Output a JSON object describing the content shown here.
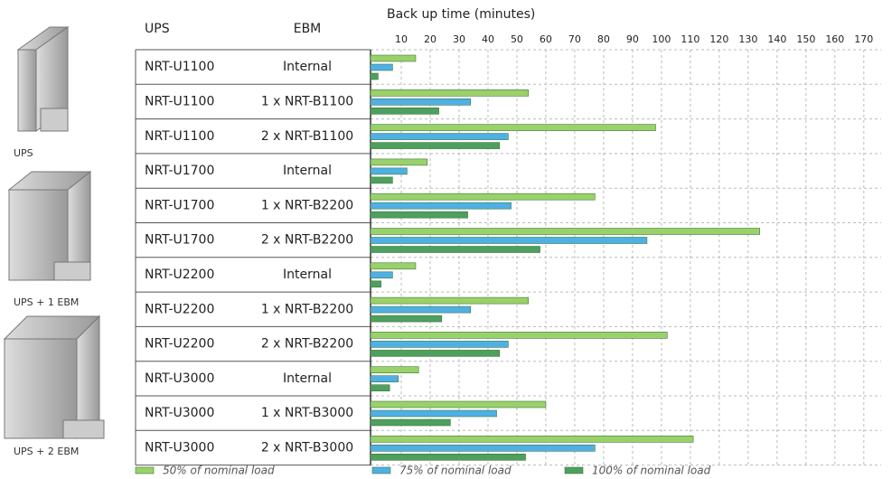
{
  "side_labels": [
    "UPS",
    "UPS + 1 EBM",
    "UPS + 2 EBM"
  ],
  "chart_data": {
    "type": "bar",
    "orientation": "horizontal",
    "title": "Back up time (minutes)",
    "columns": [
      "UPS",
      "EBM"
    ],
    "categories": [
      "NRT-U1100",
      "NRT-U1100",
      "NRT-U1100",
      "NRT-U1700",
      "NRT-U1700",
      "NRT-U1700",
      "NRT-U2200",
      "NRT-U2200",
      "NRT-U2200",
      "NRT-U3000",
      "NRT-U3000",
      "NRT-U3000"
    ],
    "ebm": [
      "Internal",
      "1 x NRT-B1100",
      "2 x NRT-B1100",
      "Internal",
      "1 x NRT-B2200",
      "2 x NRT-B2200",
      "Internal",
      "1 x NRT-B2200",
      "2 x NRT-B2200",
      "Internal",
      "1 x NRT-B3000",
      "2 x NRT-B3000"
    ],
    "series": [
      {
        "name": "50% of nominal load",
        "color": "#9ad16a",
        "values": [
          15,
          54,
          98,
          19,
          77,
          134,
          15,
          54,
          102,
          16,
          60,
          111
        ]
      },
      {
        "name": "75% of nominal load",
        "color": "#4fb0e6",
        "values": [
          7,
          34,
          47,
          12,
          48,
          95,
          7,
          34,
          47,
          9,
          43,
          77
        ]
      },
      {
        "name": "100% of nominal load",
        "color": "#4f9f5f",
        "values": [
          2,
          23,
          44,
          7,
          33,
          58,
          3,
          24,
          44,
          6,
          27,
          53
        ]
      }
    ],
    "xlim": [
      0,
      176
    ],
    "xticks": [
      10,
      20,
      30,
      40,
      50,
      60,
      70,
      80,
      90,
      100,
      110,
      120,
      130,
      140,
      150,
      160,
      170
    ],
    "grid": true
  }
}
